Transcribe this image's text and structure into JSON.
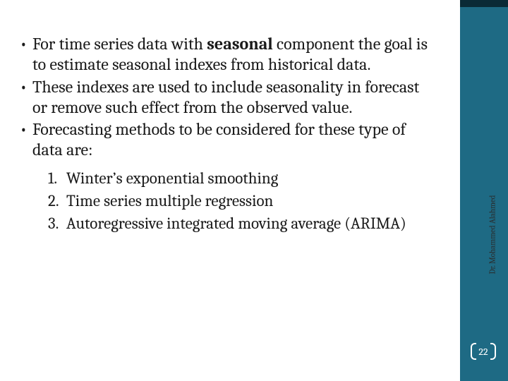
{
  "colors": {
    "sidebar": "#1e6a84",
    "top_accent": "#0a2a36",
    "text": "#1a1a1a",
    "badge_border": "#ffffff",
    "badge_text": "#ffffff",
    "background": "#ffffff"
  },
  "typography": {
    "body_fontsize_pt": 18,
    "numlist_fontsize_pt": 17,
    "author_fontsize_pt": 8,
    "font_family": "Cambria"
  },
  "author": "Dr. Mohammed Alahmed",
  "page_number": "22",
  "bullets": [
    {
      "dot": "•",
      "pre": "For time series data with ",
      "bold": "seasonal",
      "post": " component the goal is to estimate seasonal indexes from historical data."
    },
    {
      "dot": "•",
      "pre": "These indexes are used to include seasonality in forecast or remove such effect from the observed value.",
      "bold": "",
      "post": ""
    },
    {
      "dot": "•",
      "pre": "Forecasting methods to be considered for these type of data are:",
      "bold": "",
      "post": ""
    }
  ],
  "numbered": [
    {
      "n": "1.",
      "text": "Winter’s exponential smoothing"
    },
    {
      "n": "2.",
      "text": "Time series multiple regression"
    },
    {
      "n": "3.",
      "text": "Autoregressive integrated moving average (ARIMA)"
    }
  ]
}
